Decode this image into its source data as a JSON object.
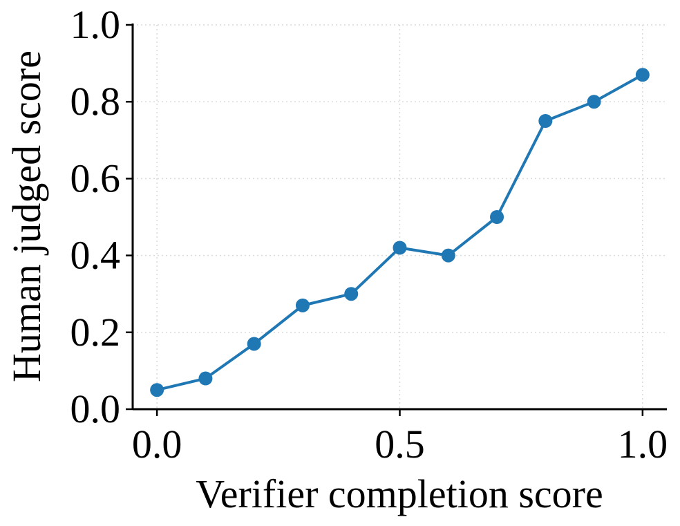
{
  "chart_data": {
    "type": "line",
    "title": "",
    "xlabel": "Verifier completion score",
    "ylabel": "Human judged score",
    "xlim": [
      -0.05,
      1.05
    ],
    "ylim": [
      0.0,
      1.0
    ],
    "xticks": [
      0.0,
      0.5,
      1.0
    ],
    "xtick_labels": [
      "0.0",
      "0.5",
      "1.0"
    ],
    "yticks": [
      0.0,
      0.2,
      0.4,
      0.6,
      0.8,
      1.0
    ],
    "ytick_labels": [
      "0.0",
      "0.2",
      "0.4",
      "0.6",
      "0.8",
      "1.0"
    ],
    "grid": true,
    "legend": false,
    "series": [
      {
        "color": "#1f77b4",
        "x": [
          0.0,
          0.1,
          0.2,
          0.3,
          0.4,
          0.5,
          0.6,
          0.7,
          0.8,
          0.9,
          1.0
        ],
        "y": [
          0.05,
          0.08,
          0.17,
          0.27,
          0.3,
          0.42,
          0.4,
          0.5,
          0.75,
          0.8,
          0.87
        ]
      }
    ]
  }
}
